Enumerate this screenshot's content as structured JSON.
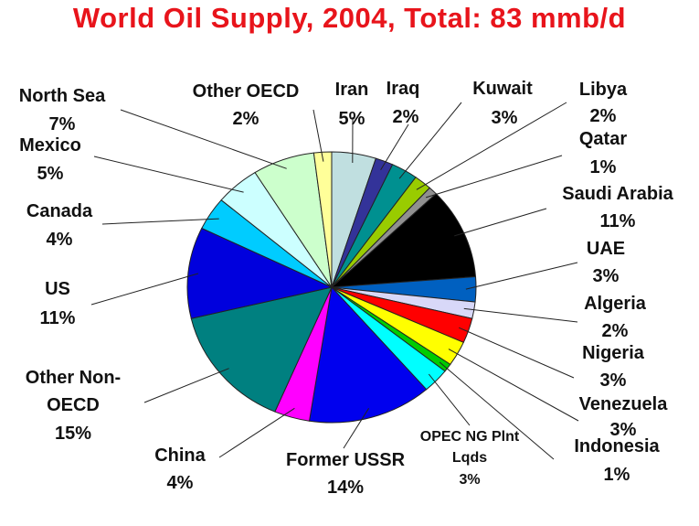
{
  "chart_data": {
    "type": "pie",
    "title": "World Oil Supply,  2004,  Total: 83 mmb/d",
    "slices": [
      {
        "name": "Iran",
        "value": 5,
        "label": "5%",
        "color": "#c0dfe0"
      },
      {
        "name": "Iraq",
        "value": 2,
        "label": "2%",
        "color": "#333399"
      },
      {
        "name": "Kuwait",
        "value": 3,
        "label": "3%",
        "color": "#009090"
      },
      {
        "name": "Libya",
        "value": 2,
        "label": "2%",
        "color": "#99cc00"
      },
      {
        "name": "Qatar",
        "value": 1,
        "label": "1%",
        "color": "#909090"
      },
      {
        "name": "Saudi Arabia",
        "value": 11,
        "label": "11%",
        "color": "#000000"
      },
      {
        "name": "UAE",
        "value": 3,
        "label": "3%",
        "color": "#0060c0"
      },
      {
        "name": "Algeria",
        "value": 2,
        "label": "2%",
        "color": "#d8d8f8"
      },
      {
        "name": "Nigeria",
        "value": 3,
        "label": "3%",
        "color": "#ff0000"
      },
      {
        "name": "Venezuela",
        "value": 3,
        "label": "3%",
        "color": "#ffff00"
      },
      {
        "name": "Indonesia",
        "value": 1,
        "label": "1%",
        "color": "#00cc00"
      },
      {
        "name": "OPEC NG Plnt Lqds",
        "value": 3,
        "label": "3%",
        "color": "#00ffff"
      },
      {
        "name": "Former USSR",
        "value": 14,
        "label": "14%",
        "color": "#0000ee"
      },
      {
        "name": "China",
        "value": 4,
        "label": "4%",
        "color": "#ff00ff"
      },
      {
        "name": "Other Non-OECD",
        "value": 15,
        "label": "15%",
        "color": "#008080"
      },
      {
        "name": "US",
        "value": 11,
        "label": "11%",
        "color": "#0000dd",
        "label_color": "#e8141b"
      },
      {
        "name": "Canada",
        "value": 4,
        "label": "4%",
        "color": "#00ccff"
      },
      {
        "name": "Mexico",
        "value": 5,
        "label": "5%",
        "color": "#ccffff"
      },
      {
        "name": "North Sea",
        "value": 7,
        "label": "7%",
        "color": "#ccffcc"
      },
      {
        "name": "Other OECD",
        "value": 2,
        "label": "2%",
        "color": "#ffff99"
      }
    ]
  }
}
